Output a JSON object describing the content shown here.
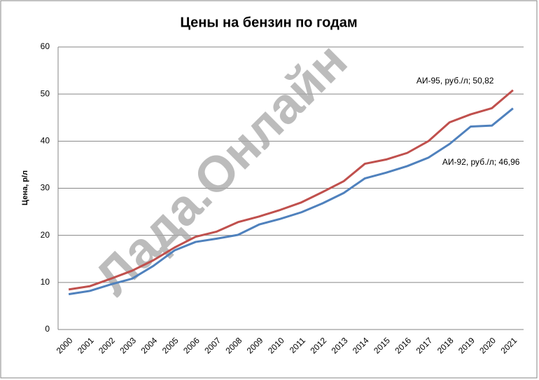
{
  "chart_data": {
    "type": "line",
    "title": "Цены на бензин по годам",
    "y_label": "Цена, р/л",
    "watermark": "Лада.Онлайн",
    "categories": [
      "2000",
      "2001",
      "2002",
      "2003",
      "2004",
      "2005",
      "2006",
      "2007",
      "2008",
      "2009",
      "2010",
      "2011",
      "2012",
      "2013",
      "2014",
      "2015",
      "2016",
      "2017",
      "2018",
      "2019",
      "2020",
      "2021"
    ],
    "series": [
      {
        "color": "#c0504d",
        "values": [
          8.5,
          9.2,
          10.8,
          12.5,
          14.7,
          17.4,
          19.7,
          20.8,
          22.8,
          24.0,
          25.4,
          27.0,
          29.2,
          31.5,
          35.2,
          36.1,
          37.5,
          40.0,
          44.0,
          45.7,
          47.0,
          50.82
        ],
        "value_labels": [
          null,
          null,
          null,
          null,
          null,
          null,
          null,
          null,
          null,
          null,
          null,
          null,
          null,
          null,
          null,
          null,
          null,
          null,
          null,
          null,
          null,
          "АИ-95, руб./л; 50,82"
        ]
      },
      {
        "color": "#4f81bd",
        "values": [
          7.5,
          8.2,
          9.6,
          10.8,
          13.5,
          16.8,
          18.6,
          19.3,
          20.1,
          22.3,
          23.5,
          24.9,
          26.8,
          29.0,
          32.1,
          33.3,
          34.7,
          36.5,
          39.4,
          43.1,
          43.3,
          46.96
        ],
        "value_labels": [
          null,
          null,
          null,
          null,
          null,
          null,
          null,
          null,
          null,
          null,
          null,
          null,
          null,
          null,
          null,
          null,
          null,
          null,
          null,
          null,
          null,
          "АИ-92, руб./л; 46,96"
        ]
      }
    ],
    "ylim": [
      0,
      60
    ],
    "yticks": [
      0,
      10,
      20,
      30,
      40,
      50,
      60
    ],
    "grid": true
  }
}
